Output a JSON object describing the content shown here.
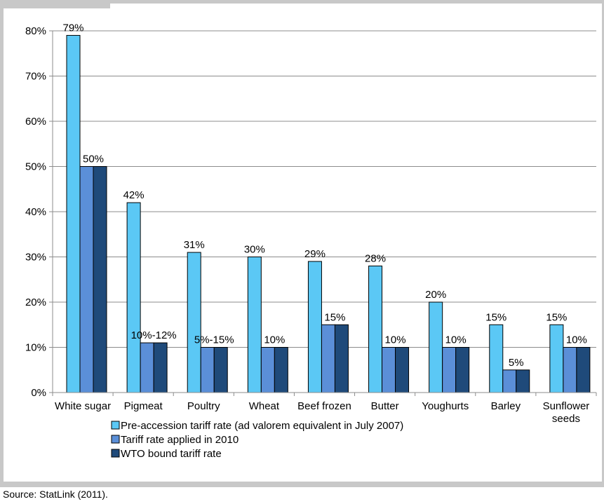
{
  "chart_data": {
    "type": "bar",
    "categories": [
      "White sugar",
      "Pigmeat",
      "Poultry",
      "Wheat",
      "Beef frozen",
      "Butter",
      "Youghurts",
      "Barley",
      "Sunflower seeds"
    ],
    "category_lines": [
      [
        "White sugar"
      ],
      [
        "Pigmeat"
      ],
      [
        "Poultry"
      ],
      [
        "Wheat"
      ],
      [
        "Beef frozen"
      ],
      [
        "Butter"
      ],
      [
        "Youghurts"
      ],
      [
        "Barley"
      ],
      [
        "Sunflower",
        "seeds"
      ]
    ],
    "series": [
      {
        "name": "Pre-accession tariff rate (ad valorem equivalent in July 2007)",
        "values": [
          79,
          42,
          31,
          30,
          29,
          28,
          20,
          15,
          15
        ],
        "color": "#5bc8f5"
      },
      {
        "name": "Tariff rate applied in 2010",
        "values": [
          50,
          11,
          10,
          10,
          15,
          10,
          10,
          5,
          10
        ],
        "color": "#5b8fd8"
      },
      {
        "name": "WTO bound tariff rate",
        "values": [
          50,
          11,
          10,
          10,
          15,
          10,
          10,
          5,
          10
        ],
        "color": "#1f4a7a"
      }
    ],
    "data_labels": {
      "pre": [
        "79%",
        "42%",
        "31%",
        "30%",
        "29%",
        "28%",
        "20%",
        "15%",
        "15%"
      ],
      "other": [
        "50%",
        "10%-12%",
        "5%-15%",
        "10%",
        "15%",
        "10%",
        "10%",
        "5%",
        "10%"
      ]
    },
    "yticks": [
      "0%",
      "10%",
      "20%",
      "30%",
      "40%",
      "50%",
      "60%",
      "70%",
      "80%"
    ],
    "ylim": [
      0,
      80
    ],
    "grid": true,
    "legend_position": "bottom"
  },
  "source": "Source: StatLink (2011)."
}
